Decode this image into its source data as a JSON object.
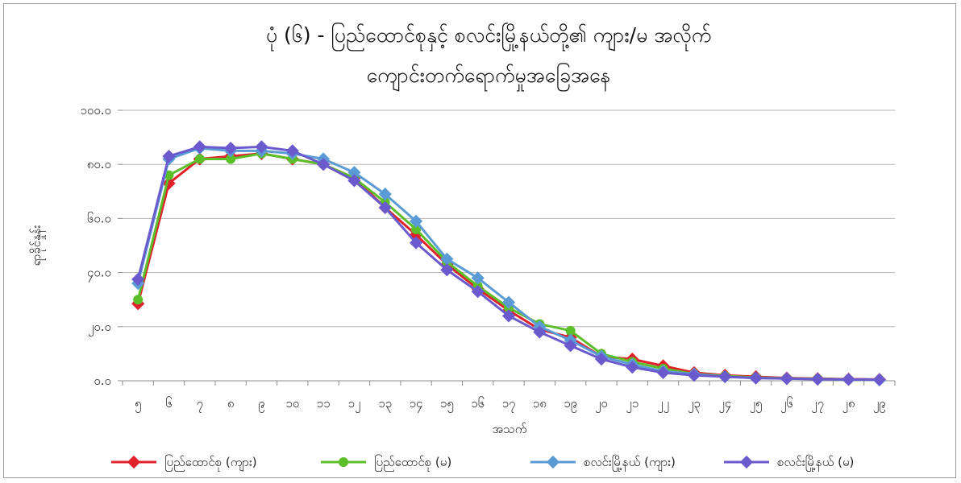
{
  "chart_data": {
    "type": "line",
    "title_lines": [
      "ပုံ (၆) - ပြည်ထောင်စုနှင့် စလင်းမြို့နယ်တို့၏ ကျား/မ အလိုက်",
      "ကျောင်းတက်ရောက်မှုအခြေအနေ"
    ],
    "xlabel": "အသက်",
    "ylabel": "ရာခိုင်နှုန်း",
    "ylim": [
      0,
      100
    ],
    "y_ticks": [
      "၀.၀",
      "၂၀.၀",
      "၄၀.၀",
      "၆၀.၀",
      "၈၀.၀",
      "၁၀၀.၀"
    ],
    "categories": [
      "၅",
      "၆",
      "၇",
      "၈",
      "၉",
      "၁၀",
      "၁၁",
      "၁၂",
      "၁၃",
      "၁၄",
      "၁၅",
      "၁၆",
      "၁၇",
      "၁၈",
      "၁၉",
      "၂၀",
      "၂၁",
      "၂၂",
      "၂၃",
      "၂၄",
      "၂၅",
      "၂၆",
      "၂၇",
      "၂၈",
      "၂၉"
    ],
    "grid": true,
    "legend_position": "bottom",
    "series": [
      {
        "name": "ပြည်ထောင်စု (ကျား)",
        "color": "#e0202a",
        "marker": "diamond",
        "values": [
          28.5,
          73,
          82,
          83,
          84,
          82,
          80,
          75,
          64,
          54,
          43,
          34,
          26,
          19,
          16,
          9,
          8,
          5.5,
          3,
          2,
          1.5,
          1,
          0.8,
          0.6,
          0.5
        ]
      },
      {
        "name": "ပြည်ထောင်စု (မ)",
        "color": "#5cbf2a",
        "marker": "circle",
        "values": [
          30,
          76,
          82,
          82,
          84,
          82,
          80,
          75,
          66,
          56,
          44,
          35,
          27,
          21,
          18.5,
          10,
          7,
          4.5,
          2.5,
          1.8,
          1.2,
          0.9,
          0.7,
          0.5,
          0.4
        ]
      },
      {
        "name": "စလင်းမြို့နယ် (ကျား)",
        "color": "#5b9bd5",
        "marker": "diamond",
        "values": [
          36,
          82,
          86,
          85,
          85,
          84,
          82,
          77,
          69,
          59,
          45,
          38,
          29,
          20,
          15,
          9,
          6,
          3.5,
          2.5,
          1.5,
          1,
          0.8,
          0.6,
          0.5,
          0.3
        ]
      },
      {
        "name": "စလင်းမြို့နယ် (မ)",
        "color": "#6a5acd",
        "marker": "diamond",
        "values": [
          37.5,
          83,
          86.5,
          86,
          86.5,
          85,
          80,
          74,
          64,
          51,
          41,
          33,
          24,
          18,
          13,
          8,
          5,
          3,
          2,
          1.5,
          1,
          0.8,
          0.6,
          0.5,
          0.4
        ]
      }
    ]
  }
}
